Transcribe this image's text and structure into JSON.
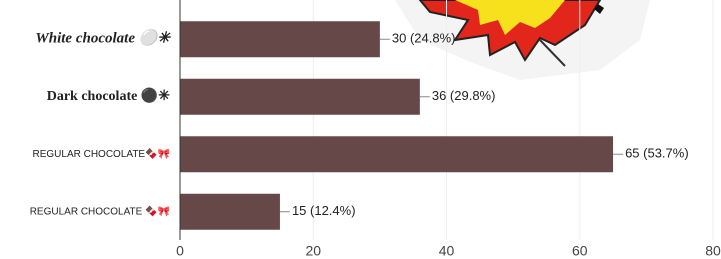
{
  "chart_data": {
    "type": "hbar",
    "categories": [
      "White chocolate ⚪✳",
      "Dark chocolate ⚫✳",
      "REGULAR CHOCOLATE🍫🎀",
      "REGULAR CHOCOLATE 🍫🎀"
    ],
    "values": [
      30,
      36,
      65,
      15
    ],
    "value_labels": [
      "30 (24.8%)",
      "36 (29.8%)",
      "65 (53.7%)",
      "15 (12.4%)"
    ],
    "color": "#664848",
    "xlim": [
      0,
      80
    ],
    "xticks": [
      0,
      20,
      40,
      60,
      80
    ],
    "grid": true
  }
}
